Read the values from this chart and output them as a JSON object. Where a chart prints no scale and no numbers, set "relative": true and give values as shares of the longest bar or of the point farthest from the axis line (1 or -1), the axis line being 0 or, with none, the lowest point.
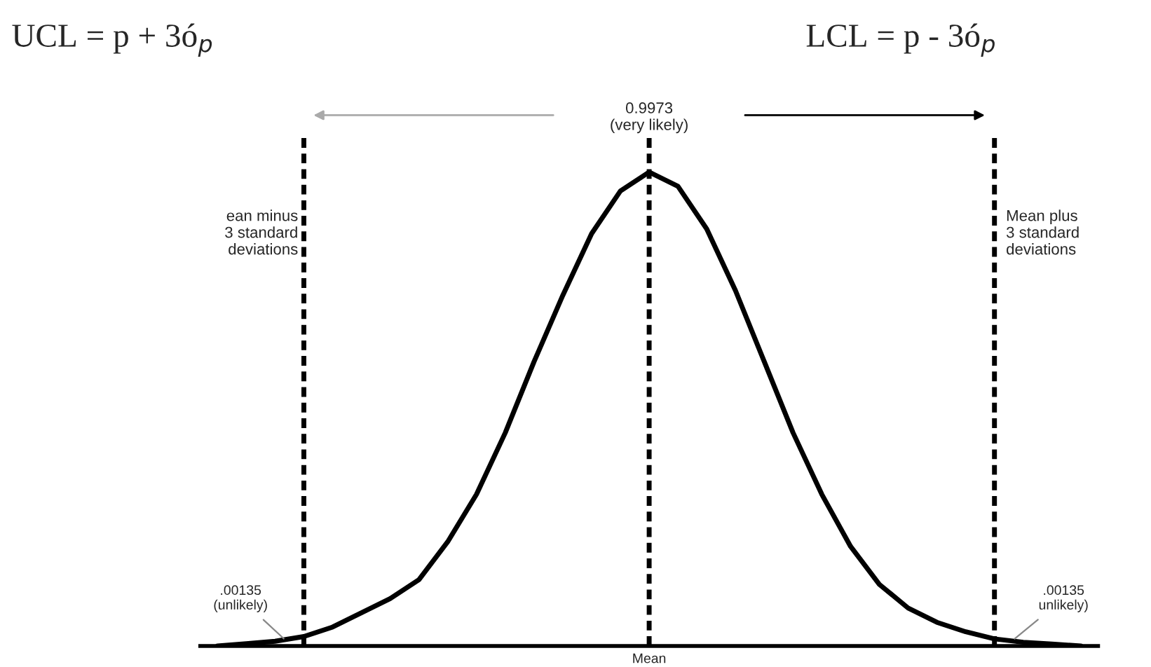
{
  "chart_data": {
    "type": "line",
    "relative": true,
    "categories": [
      null,
      null,
      null,
      null,
      null,
      null,
      null,
      null,
      null,
      null,
      null,
      null,
      null,
      null,
      null,
      null,
      null,
      null,
      null,
      null,
      null,
      null,
      null,
      null,
      null,
      null,
      null,
      null,
      null,
      null,
      null
    ],
    "series": [
      {
        "color": "#000000",
        "values": [
          0,
          0.005,
          0.01,
          0.02,
          0.04,
          0.07,
          0.1,
          0.14,
          0.22,
          0.32,
          0.45,
          0.6,
          0.74,
          0.87,
          0.96,
          1,
          0.97,
          0.88,
          0.75,
          0.6,
          0.45,
          0.32,
          0.21,
          0.13,
          0.08,
          0.05,
          0.03,
          0.015,
          0.008,
          0.004,
          0
        ]
      }
    ],
    "grid": "x",
    "legend": false,
    "marker": "none",
    "line_style": "solid",
    "annotations": [
      "UCL = p + 3ó$_{p}$",
      "LCL = p - 3ó$_{p}$",
      "0.9973\n(very likely)",
      "ean minus\n3 standard\ndeviations",
      "Mean plus\n3 standard\ndeviations",
      ".00135\n(unlikely)",
      ".00135\nunlikely)",
      "Mean"
    ]
  }
}
